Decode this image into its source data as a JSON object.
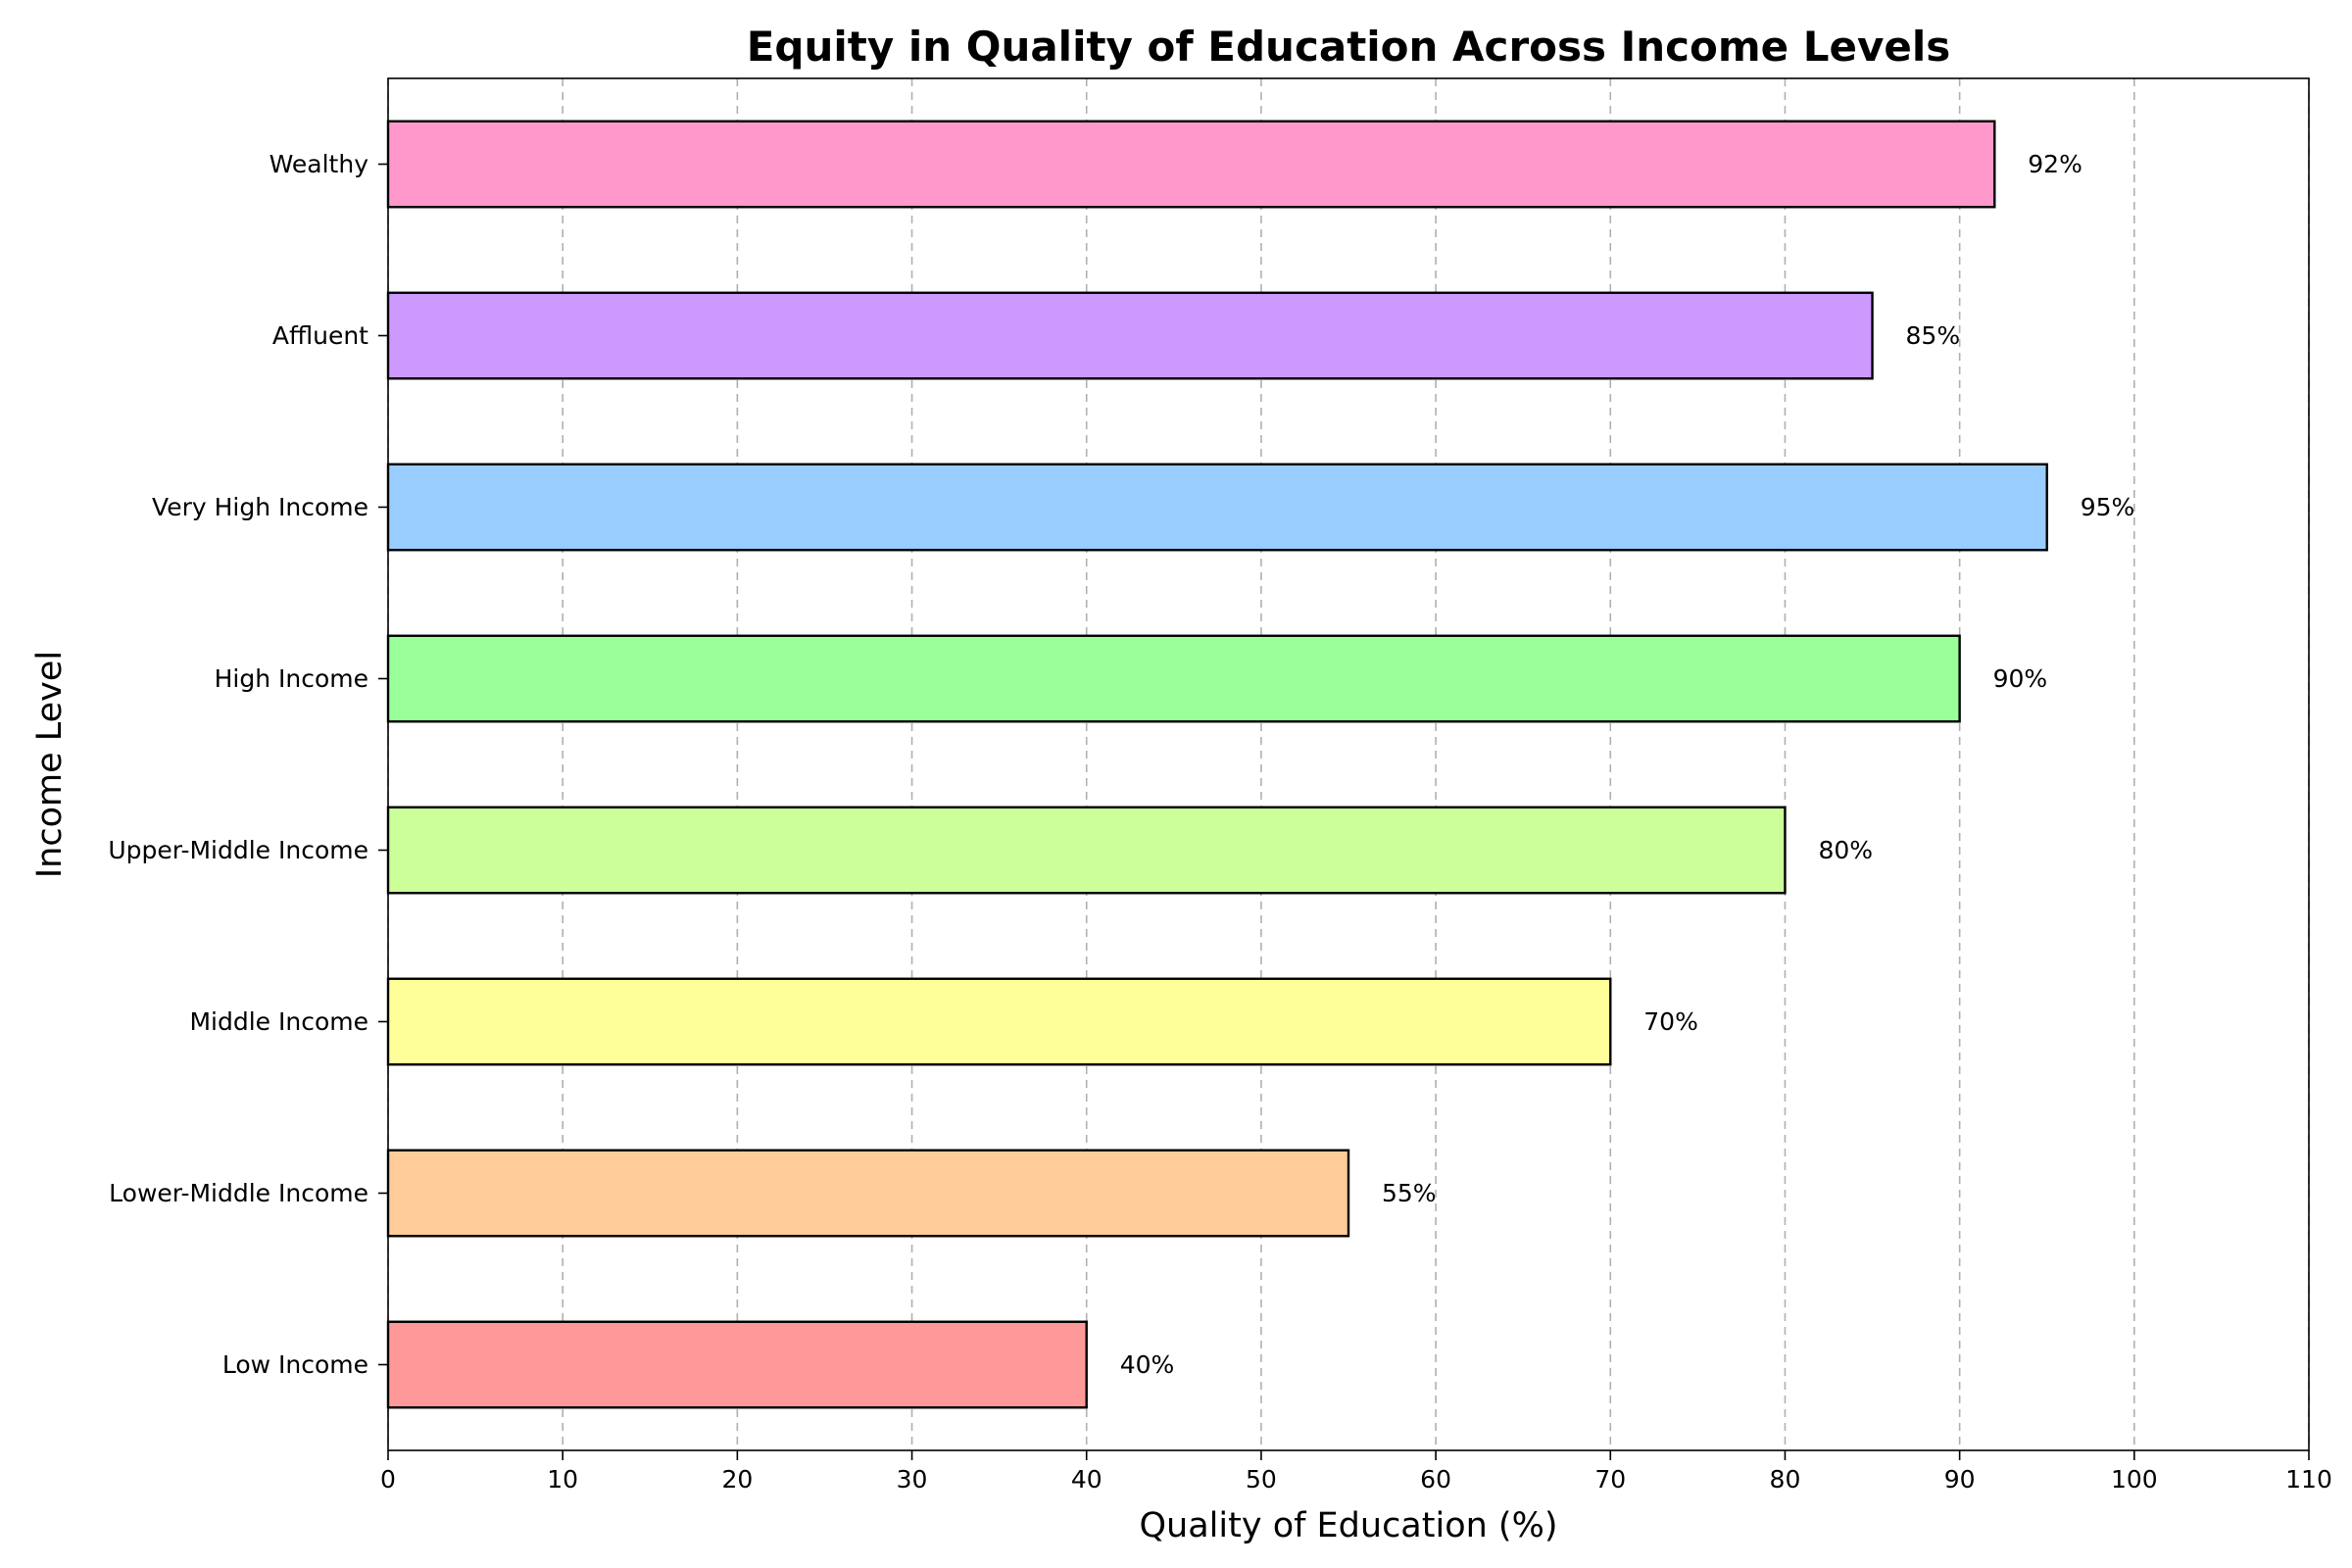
{
  "chart_data": {
    "type": "bar",
    "orientation": "horizontal",
    "title": "Equity in Quality of Education Across Income Levels",
    "xlabel": "Quality of Education (%)",
    "ylabel": "Income Level",
    "categories": [
      "Low Income",
      "Lower-Middle Income",
      "Middle Income",
      "Upper-Middle Income",
      "High Income",
      "Very High Income",
      "Affluent",
      "Wealthy"
    ],
    "values": [
      40,
      55,
      70,
      80,
      90,
      95,
      85,
      92
    ],
    "value_labels": [
      "40%",
      "55%",
      "70%",
      "80%",
      "90%",
      "95%",
      "85%",
      "92%"
    ],
    "colors": [
      "#ff9999",
      "#ffcc99",
      "#ffff99",
      "#ccff99",
      "#99ff99",
      "#99ccff",
      "#cc99ff",
      "#ff99cc"
    ],
    "xlim": [
      0,
      110
    ],
    "xticks": [
      0,
      10,
      20,
      30,
      40,
      50,
      60,
      70,
      80,
      90,
      100,
      110
    ],
    "grid": "x-axis dashed",
    "legend": "none"
  }
}
